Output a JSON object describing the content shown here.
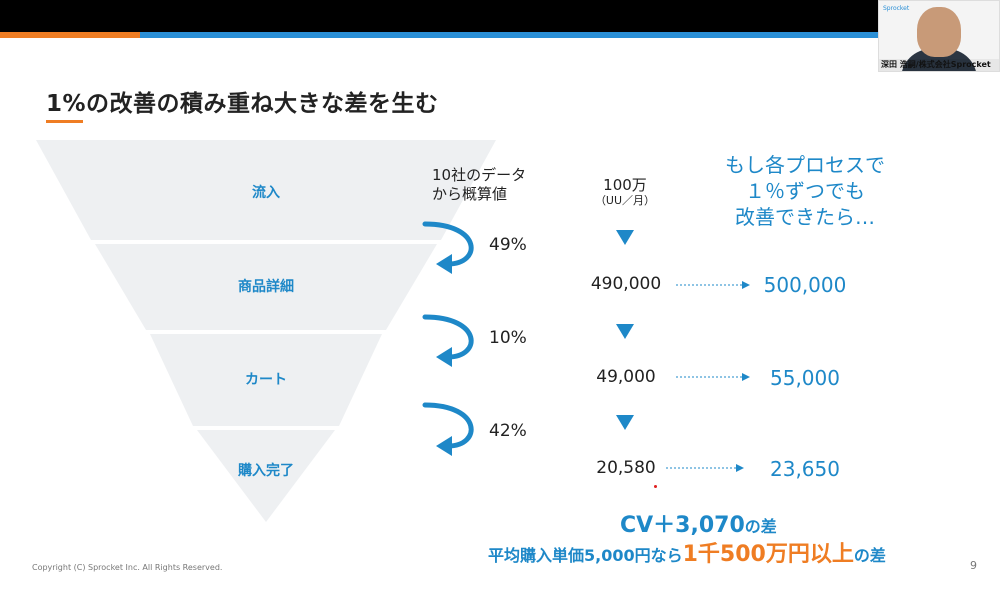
{
  "slide": {
    "title": "1%の改善の積み重ね大きな差を生む",
    "copyright": "Copyright (C) Sprocket Inc. All Rights Reserved.",
    "page_number": "9"
  },
  "funnel": {
    "stages": [
      {
        "label": "流入"
      },
      {
        "label": "商品詳細"
      },
      {
        "label": "カート"
      },
      {
        "label": "購入完了"
      }
    ]
  },
  "notes": {
    "data_source_line1": "10社のデータ",
    "data_source_line2": "から概算値",
    "unit_line1": "100万",
    "unit_line2": "（UU／月）"
  },
  "callout": {
    "line1": "もし各プロセスで",
    "line2": "１％ずつでも",
    "line3": "改善できたら…"
  },
  "conversion_rates": [
    "49%",
    "10%",
    "42%"
  ],
  "current_values": [
    "490,000",
    "49,000",
    "20,580"
  ],
  "improved_values": [
    "500,000",
    "55,000",
    "23,650"
  ],
  "summary": {
    "cv_main": "CV＋3,070",
    "cv_suffix": "の差",
    "revenue_prefix": "平均購入単価5,000円なら",
    "revenue_highlight": "1千500万円以上",
    "revenue_suffix": "の差"
  },
  "video": {
    "participant_name": "深田 浩嗣/株式会社Sprocket",
    "logo_text": "Sprocket"
  },
  "colors": {
    "accent_blue": "#1e88c8",
    "accent_orange": "#ef7d23",
    "funnel_fill": "#eef0f2"
  }
}
